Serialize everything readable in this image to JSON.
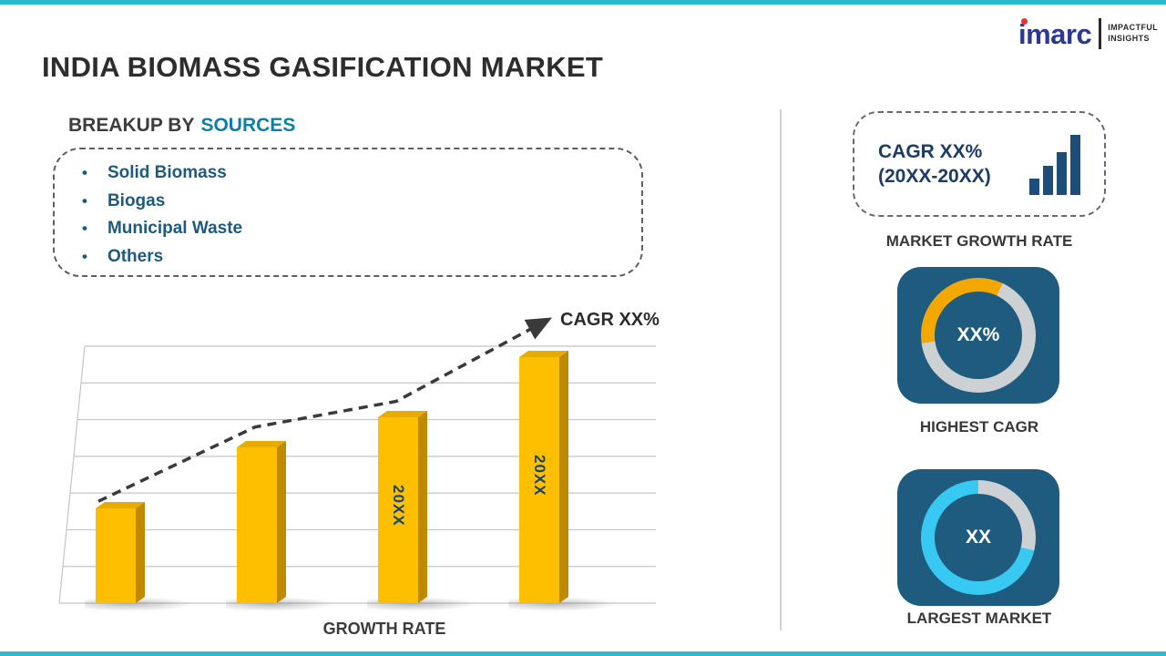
{
  "page": {
    "title": "INDIA BIOMASS GASIFICATION MARKET",
    "accent_color": "#2ab9cf"
  },
  "logo": {
    "brand": "imarc",
    "tagline_top": "IMPACTFUL",
    "tagline_bottom": "INSIGHTS"
  },
  "breakup": {
    "heading_prefix": "BREAKUP BY",
    "heading_highlight": "SOURCES",
    "items": [
      "Solid Biomass",
      "Biogas",
      "Municipal Waste",
      "Others"
    ]
  },
  "chart_data": {
    "type": "bar",
    "title": "",
    "categories": [
      "",
      "",
      "20XX",
      "20XX"
    ],
    "values": [
      100,
      165,
      197,
      260
    ],
    "value_note": "relative bar heights; no numeric axis shown",
    "xlabel": "GROWTH RATE",
    "ylabel": "",
    "grid": "horizontal",
    "legend": "none",
    "bar_color": "#fdbf00",
    "trend_annotation": "CAGR XX%",
    "trend_style": "dashed-arrow-up"
  },
  "right_panel": {
    "growth_card": {
      "line1": "CAGR XX%",
      "line2": "(20XX-20XX)",
      "icon": "bar-chart-icon"
    },
    "market_growth_label": "MARKET GROWTH RATE",
    "highest_cagr": {
      "center_value": "XX%",
      "label": "HIGHEST CAGR",
      "ring_accent": "#f2a800",
      "ring_base": "#cdd1d4"
    },
    "largest_market": {
      "center_value": "XX",
      "label": "LARGEST MARKET",
      "ring_accent": "#38c9f3",
      "ring_base": "#cdd1d4"
    }
  }
}
